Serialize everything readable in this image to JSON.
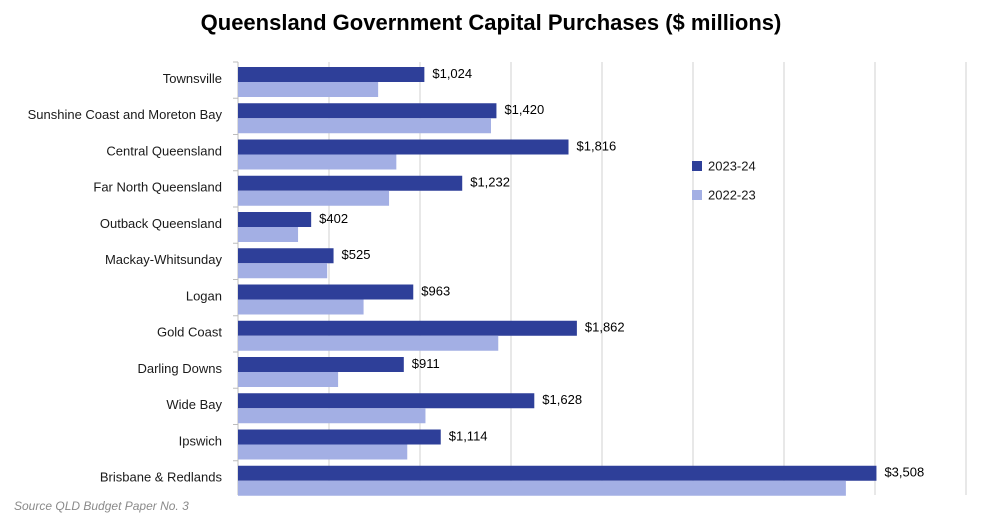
{
  "chart_data": {
    "type": "bar",
    "orientation": "horizontal",
    "title": "Queensland Government Capital Purchases ($ millions)",
    "categories": [
      "Townsville",
      "Sunshine Coast and Moreton Bay",
      "Central Queensland",
      "Far North Queensland",
      "Outback Queensland",
      "Mackay-Whitsunday",
      "Logan",
      "Gold Coast",
      "Darling Downs",
      "Wide Bay",
      "Ipswich",
      "Brisbane & Redlands"
    ],
    "series": [
      {
        "name": "2023-24",
        "color": "#2e3f99",
        "values": [
          1024,
          1420,
          1816,
          1232,
          402,
          525,
          963,
          1862,
          911,
          1628,
          1114,
          3508
        ],
        "labels": [
          "$1,024",
          "$1,420",
          "$1,816",
          "$1,232",
          "$402",
          "$525",
          "$963",
          "$1,862",
          "$911",
          "$1,628",
          "$1,114",
          "$3,508"
        ]
      },
      {
        "name": "2022-23",
        "color": "#a3afe4",
        "values": [
          770,
          1390,
          870,
          830,
          330,
          490,
          690,
          1430,
          550,
          1030,
          930,
          3340
        ]
      }
    ],
    "xlim": [
      0,
      4000
    ],
    "grid": "vertical",
    "legend_position": "right"
  },
  "source": "Source QLD Budget Paper No. 3"
}
